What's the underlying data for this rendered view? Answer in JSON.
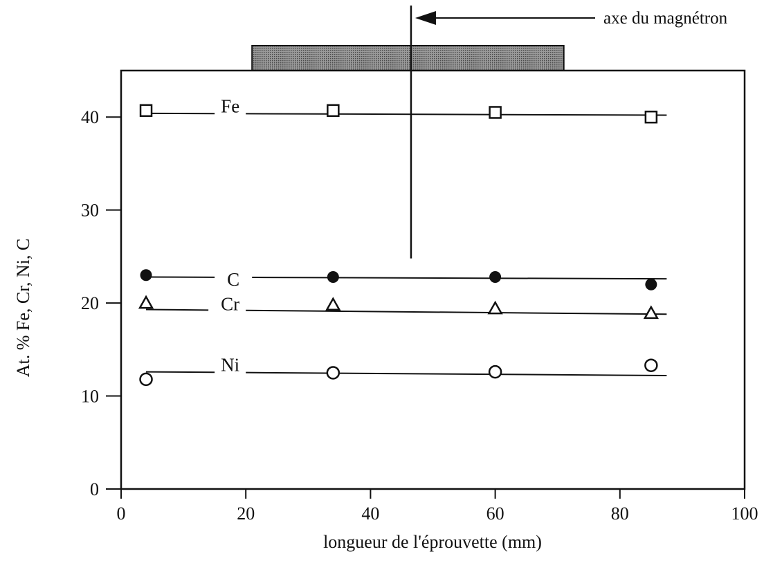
{
  "chart_data": {
    "type": "scatter",
    "xlabel": "longueur de l'éprouvette (mm)",
    "ylabel": "At. % Fe, Cr, Ni, C",
    "xlim": [
      0,
      100
    ],
    "ylim": [
      0,
      45
    ],
    "x_ticks": [
      "0",
      "20",
      "40",
      "60",
      "80",
      "100"
    ],
    "y_ticks": [
      "0",
      "10",
      "20",
      "30",
      "40"
    ],
    "grid": false,
    "legend": "inline labels",
    "series": [
      {
        "name": "Fe",
        "marker": "open-square",
        "x": [
          4,
          34,
          60,
          85
        ],
        "y": [
          40.7,
          40.7,
          40.5,
          40.0
        ],
        "fit": [
          40.4,
          40.2
        ]
      },
      {
        "name": "C",
        "marker": "filled-circle",
        "x": [
          4,
          34,
          60,
          85
        ],
        "y": [
          23.0,
          22.8,
          22.8,
          22.0
        ],
        "fit": [
          22.8,
          22.6
        ]
      },
      {
        "name": "Cr",
        "marker": "open-triangle",
        "x": [
          4,
          34,
          60,
          85
        ],
        "y": [
          20.0,
          19.8,
          19.4,
          18.9
        ],
        "fit": [
          19.3,
          18.8
        ]
      },
      {
        "name": "Ni",
        "marker": "open-circle",
        "x": [
          4,
          34,
          60,
          85
        ],
        "y": [
          11.8,
          12.5,
          12.6,
          13.3
        ],
        "fit": [
          12.6,
          12.2
        ]
      }
    ],
    "annotations": {
      "magnetron_axis_label": "axe du magnétron",
      "magnetron_axis_x": 46.5,
      "target_x_range": [
        21,
        71
      ]
    }
  }
}
